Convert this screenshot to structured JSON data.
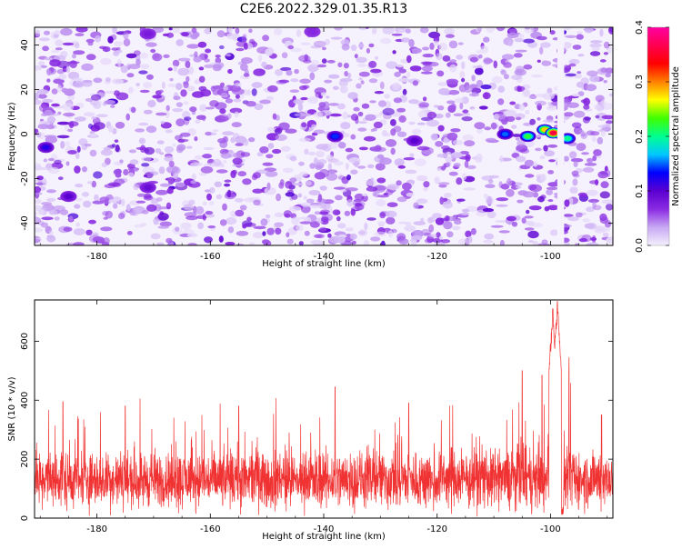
{
  "title": "C2E6.2022.329.01.35.R13",
  "chart_data": [
    {
      "type": "heatmap",
      "name": "spectrogram",
      "xlabel": "Height of straight line (km)",
      "ylabel": "Frequency (Hz)",
      "xlim": [
        -191,
        -89
      ],
      "ylim": [
        -50,
        48
      ],
      "xticks": [
        -180,
        -160,
        -140,
        -120,
        -100
      ],
      "yticks": [
        -40,
        -20,
        0,
        20,
        40
      ],
      "colorbar": {
        "label": "Normalized spectral amplitude",
        "range": [
          0.0,
          0.4
        ],
        "ticks": [
          "0.0",
          "0.1",
          "0.2",
          "0.3",
          "0.4"
        ],
        "colormap": [
          "#f4f0fc",
          "#c8a8f4",
          "#8a2be2",
          "#5a00d0",
          "#0000ff",
          "#00c8ff",
          "#00ff90",
          "#40ff00",
          "#ffff00",
          "#ff8000",
          "#ff0000",
          "#ff0050",
          "#ff00a0"
        ]
      },
      "hotspots": [
        {
          "x": -104,
          "y": -1,
          "v": 0.22
        },
        {
          "x": -101,
          "y": 2,
          "v": 0.28
        },
        {
          "x": -99.5,
          "y": 0.5,
          "v": 0.36
        },
        {
          "x": -97,
          "y": -2,
          "v": 0.2
        },
        {
          "x": -108,
          "y": 0,
          "v": 0.15
        },
        {
          "x": -138,
          "y": -1,
          "v": 0.14
        },
        {
          "x": -189,
          "y": -6,
          "v": 0.12
        },
        {
          "x": -185,
          "y": -28,
          "v": 0.1
        },
        {
          "x": -171,
          "y": -24,
          "v": 0.09
        },
        {
          "x": -171,
          "y": 45,
          "v": 0.08
        },
        {
          "x": -124,
          "y": -3,
          "v": 0.1
        },
        {
          "x": -142,
          "y": 46,
          "v": 0.07
        }
      ],
      "blank_column": {
        "from": -98.8,
        "to": -97.6
      }
    },
    {
      "type": "line",
      "name": "snr",
      "xlabel": "Height of straight line (km)",
      "ylabel": "SNR (10 * v/v)",
      "xlim": [
        -191,
        -89
      ],
      "ylim": [
        0,
        740
      ],
      "xticks": [
        -180,
        -160,
        -140,
        -120,
        -100
      ],
      "yticks": [
        0,
        200,
        400,
        600
      ],
      "color": "#f03232",
      "baseline_mean": 130,
      "notable_peaks": [
        {
          "x": -98.8,
          "y": 735
        },
        {
          "x": -99.6,
          "y": 710
        },
        {
          "x": -138.0,
          "y": 445
        },
        {
          "x": -101.5,
          "y": 485
        },
        {
          "x": -105.0,
          "y": 500
        },
        {
          "x": -186.0,
          "y": 395
        },
        {
          "x": -175.0,
          "y": 380
        },
        {
          "x": -155.0,
          "y": 380
        },
        {
          "x": -125.0,
          "y": 390
        },
        {
          "x": -91.0,
          "y": 350
        }
      ],
      "dropout": {
        "from": -98.4,
        "to": -97.7
      }
    }
  ]
}
